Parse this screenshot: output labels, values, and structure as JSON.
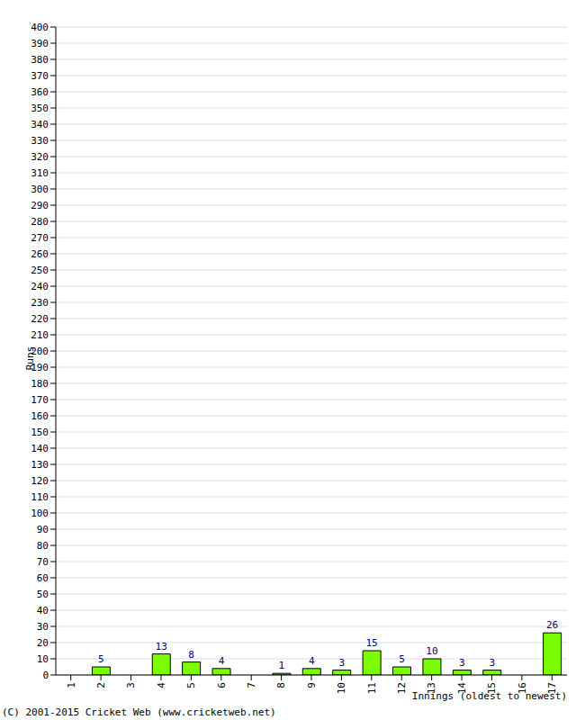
{
  "chart_data": {
    "type": "bar",
    "categories": [
      "1",
      "2",
      "3",
      "4",
      "5",
      "6",
      "7",
      "8",
      "9",
      "10",
      "11",
      "12",
      "13",
      "14",
      "15",
      "16",
      "17"
    ],
    "values": [
      0,
      5,
      0,
      13,
      8,
      4,
      0,
      1,
      4,
      3,
      15,
      5,
      10,
      3,
      3,
      0,
      26
    ],
    "color": "#7cfc00",
    "x_label": "Innings (oldest to newest)",
    "y_label": "Runs",
    "annotation": "(C) 2001-2015 Cricket Web (www.cricketweb.net)",
    "ylim": [
      0,
      400
    ],
    "yticks": [
      0,
      10,
      20,
      30,
      40,
      50,
      60,
      70,
      80,
      90,
      100,
      110,
      120,
      130,
      140,
      150,
      160,
      170,
      180,
      190,
      200,
      210,
      220,
      230,
      240,
      250,
      260,
      270,
      280,
      290,
      300,
      310,
      320,
      330,
      340,
      350,
      360,
      370,
      380,
      390,
      400
    ],
    "grid": true,
    "data_labels": true
  }
}
